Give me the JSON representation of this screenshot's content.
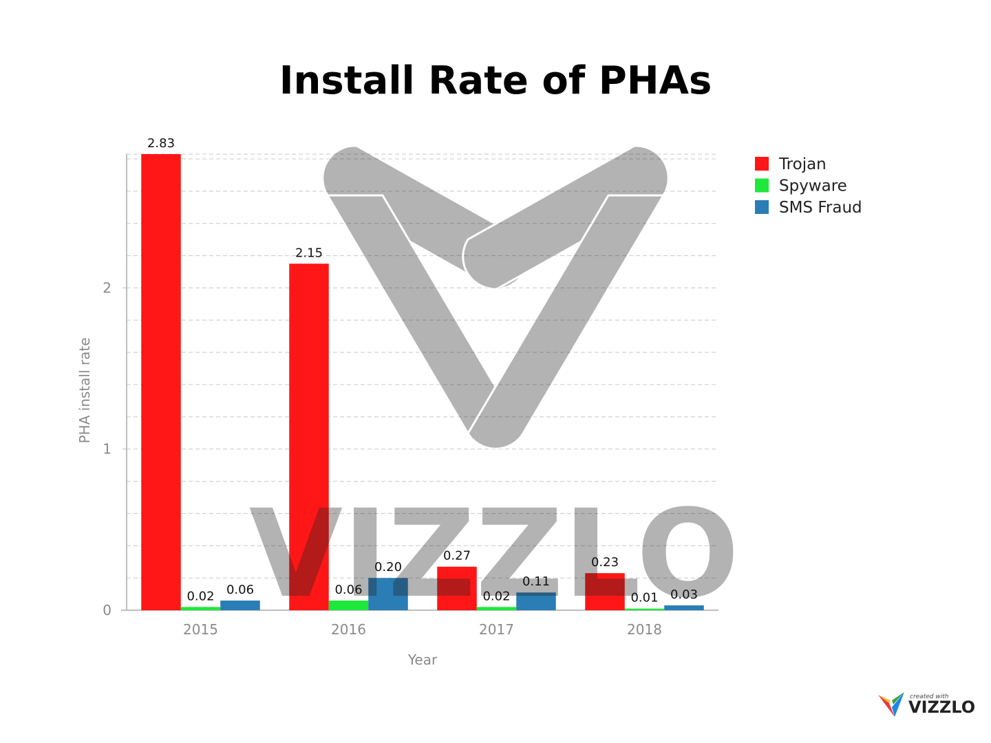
{
  "chart_data": {
    "type": "bar",
    "title": "Install Rate of PHAs",
    "xlabel": "Year",
    "ylabel": "PHA install rate",
    "categories": [
      "2015",
      "2016",
      "2017",
      "2018"
    ],
    "series": [
      {
        "name": "Trojan",
        "color": "#ff1616",
        "values": [
          2.83,
          2.15,
          0.27,
          0.23
        ],
        "labels": [
          "2.83",
          "2.15",
          "0.27",
          "0.23"
        ]
      },
      {
        "name": "Spyware",
        "color": "#1ee83a",
        "values": [
          0.02,
          0.06,
          0.02,
          0.01
        ],
        "labels": [
          "0.02",
          "0.06",
          "0.02",
          "0.01"
        ]
      },
      {
        "name": "SMS Fraud",
        "color": "#2a7db5",
        "values": [
          0.06,
          0.2,
          0.11,
          0.03
        ],
        "labels": [
          "0.06",
          "0.20",
          "0.11",
          "0.03"
        ]
      }
    ],
    "ylim": [
      0,
      2.83
    ],
    "yticks": [
      0,
      1,
      2
    ],
    "grid": true,
    "legend_position": "top-right"
  },
  "watermark": {
    "text": "VIZZLO",
    "icon": "vizzlo-logo-icon"
  },
  "credit": {
    "small": "created with",
    "brand": "VIZZLO",
    "icon": "vizzlo-logo-icon"
  }
}
